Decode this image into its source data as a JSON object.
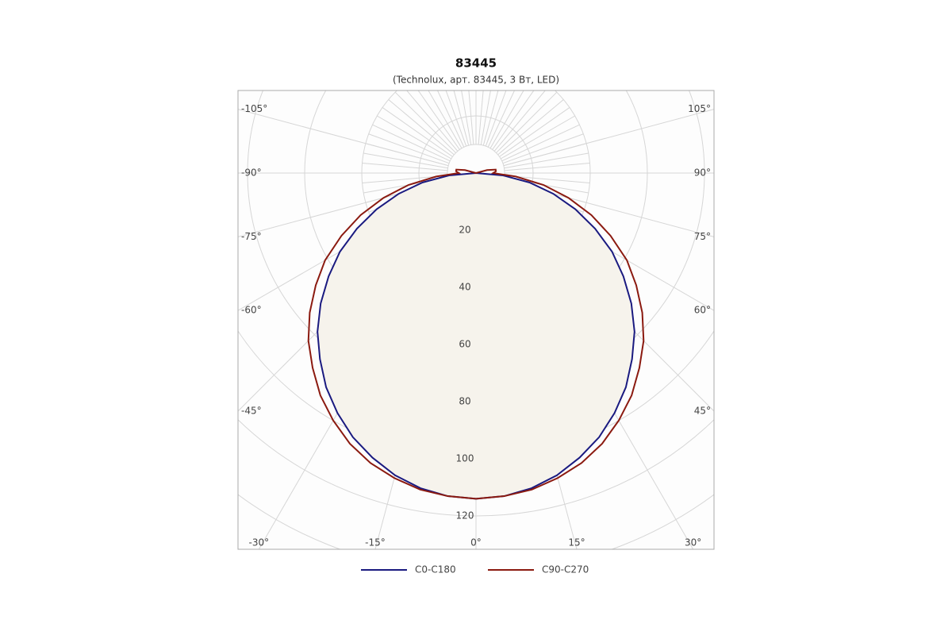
{
  "chart_data": {
    "type": "polar",
    "title": "83445",
    "subtitle": "(Technolux, арт. 83445, 3 Вт, LED)",
    "x": [
      -110,
      -105,
      -100,
      -95,
      -90,
      -85,
      -80,
      -75,
      -70,
      -65,
      -60,
      -55,
      -50,
      -45,
      -40,
      -35,
      -30,
      -25,
      -20,
      -15,
      -10,
      -5,
      0,
      5,
      10,
      15,
      20,
      25,
      30,
      35,
      40,
      45,
      50,
      55,
      60,
      65,
      70,
      75,
      80,
      85,
      90,
      95,
      100,
      105,
      110
    ],
    "series": [
      {
        "name": "C0-C180",
        "color": "#1a1a80",
        "fill": "#f6f3ec",
        "values": [
          null,
          null,
          null,
          null,
          0,
          9.5,
          19,
          28,
          37,
          46,
          55,
          63,
          71,
          78.5,
          85,
          91.5,
          97,
          102,
          106,
          109.5,
          112,
          113.5,
          114,
          113.5,
          112,
          109.5,
          106,
          102,
          97,
          91.5,
          85,
          78.5,
          71,
          63,
          55,
          46,
          37,
          28,
          19,
          9.5,
          0,
          null,
          null,
          null,
          null
        ]
      },
      {
        "name": "C90-C270",
        "color": "#8b1a10",
        "values": [
          0,
          4,
          7,
          7,
          6,
          14,
          24,
          33.5,
          43,
          52,
          61,
          68.5,
          76,
          83,
          89,
          95,
          100,
          104.5,
          108,
          110.5,
          112.5,
          113.5,
          114,
          113.5,
          112.5,
          110.5,
          108,
          104.5,
          100,
          95,
          89,
          83,
          76,
          68.5,
          61,
          52,
          43,
          33.5,
          24,
          14,
          6,
          7,
          7,
          4,
          0
        ]
      }
    ],
    "rticks": [
      20,
      40,
      60,
      80,
      100,
      120
    ],
    "angle_ticks": [
      {
        "value": -105,
        "label": "-105°"
      },
      {
        "value": -90,
        "label": "-90°"
      },
      {
        "value": -75,
        "label": "-75°"
      },
      {
        "value": -60,
        "label": "-60°"
      },
      {
        "value": -45,
        "label": "-45°"
      },
      {
        "value": -30,
        "label": "-30°"
      },
      {
        "value": -15,
        "label": "-15°"
      },
      {
        "value": 0,
        "label": "0°"
      },
      {
        "value": 15,
        "label": "15°"
      },
      {
        "value": 30,
        "label": "30°"
      },
      {
        "value": 45,
        "label": "45°"
      },
      {
        "value": 60,
        "label": "60°"
      },
      {
        "value": 75,
        "label": "75°"
      },
      {
        "value": 90,
        "label": "90°"
      },
      {
        "value": 105,
        "label": "105°"
      }
    ]
  }
}
